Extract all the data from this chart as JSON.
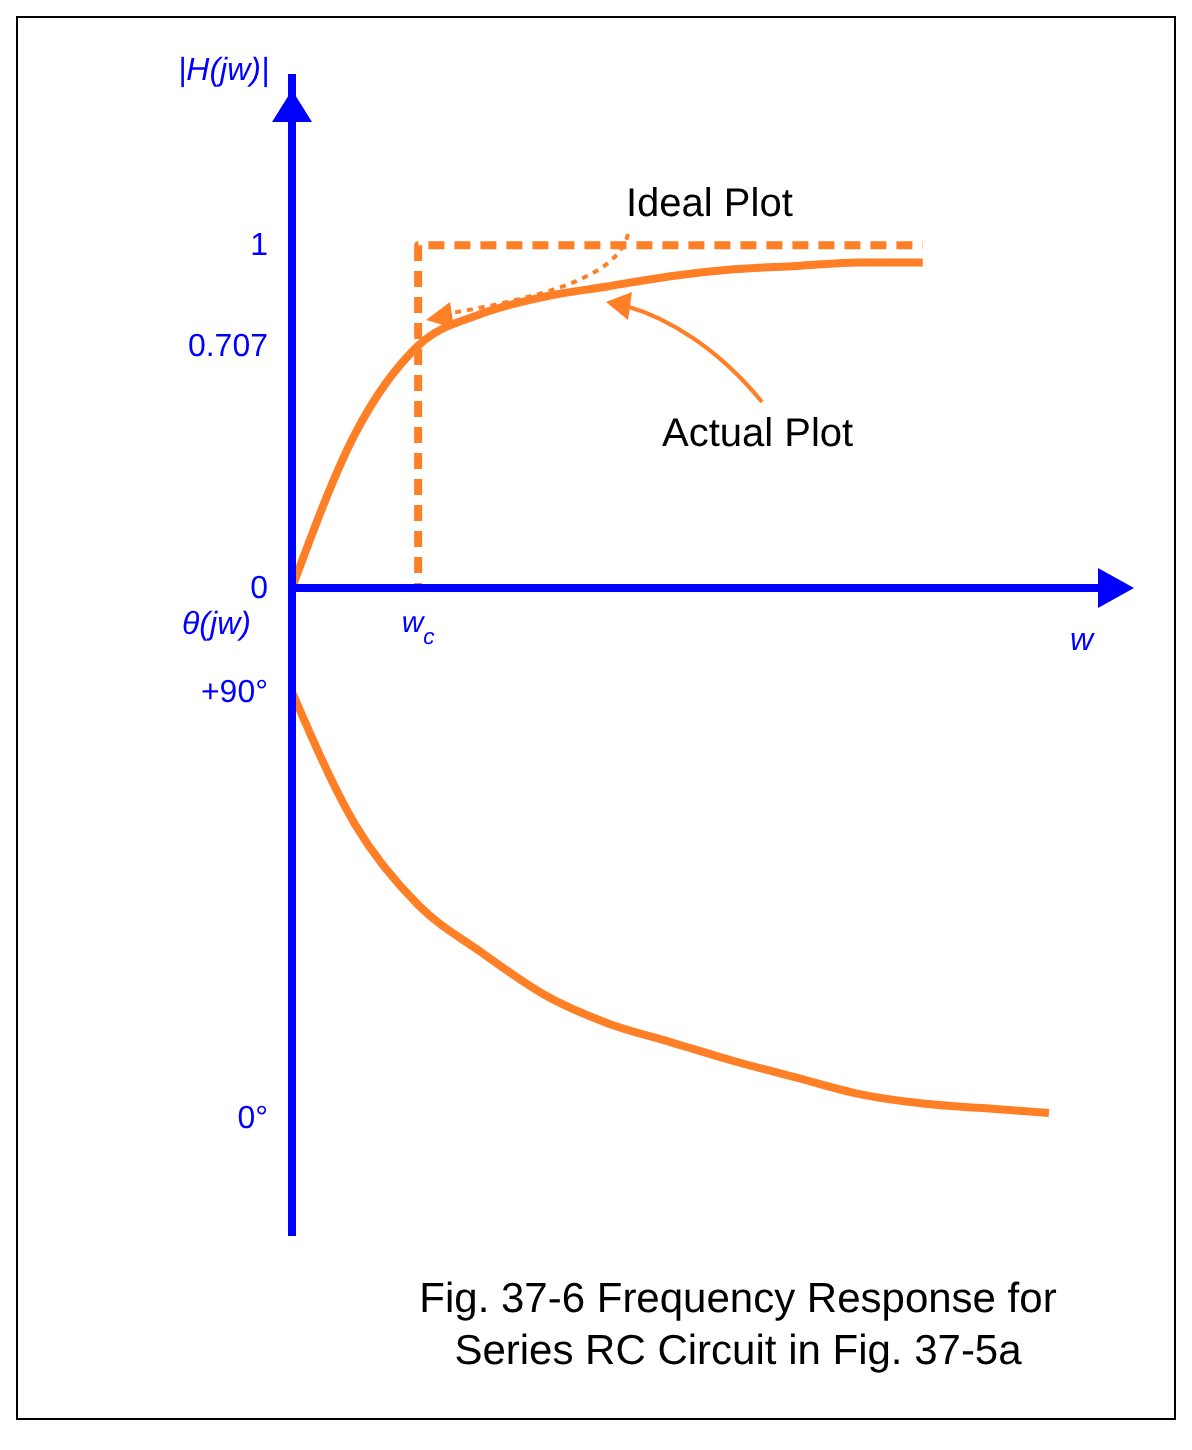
{
  "chart_data": [
    {
      "type": "line",
      "ylabel": "|H(jw)|",
      "xlabel": "w",
      "categories": [
        null,
        null,
        "w$_{c}$",
        null,
        null,
        null,
        null,
        null,
        null,
        null,
        null,
        null,
        null
      ],
      "series": [
        {
          "type": "step",
          "color": "#ff7f27",
          "line_style": "dashed",
          "values": [
            null,
            0,
            1,
            1,
            1,
            1,
            1,
            1,
            1,
            1,
            1,
            null,
            null
          ]
        },
        {
          "type": "line",
          "color": "#ff7f27",
          "line_style": "solid",
          "values": [
            0,
            0.45,
            0.707,
            0.8,
            0.85,
            0.88,
            0.91,
            0.93,
            0.94,
            0.95,
            0.95,
            null,
            null
          ]
        }
      ],
      "ylim": [
        0,
        1.5
      ],
      "yticks": [
        0,
        0.707,
        1
      ],
      "annotations": [
        "Ideal Plot",
        "Actual Plot"
      ]
    },
    {
      "type": "line",
      "ylabel": "θ(jw)",
      "categories": [
        null,
        null,
        null,
        null,
        null,
        null,
        null,
        null,
        null,
        null,
        null,
        null,
        null
      ],
      "series": [
        {
          "type": "line",
          "color": "#ff7f27",
          "line_style": "solid",
          "values": [
            90,
            62,
            45,
            35,
            26,
            20,
            16,
            12,
            8.5,
            5,
            3,
            2,
            1
          ]
        }
      ],
      "ylim": [
        -25,
        112
      ],
      "yticks": [
        {
          "value": 90,
          "label": "+90°"
        },
        {
          "value": 0,
          "label": "0°"
        }
      ],
      "tick_labels": "y",
      "annotations": [
        "Fig. 37-6 Frequency Response for Series RC Circuit in Fig. 37-5a"
      ]
    }
  ]
}
